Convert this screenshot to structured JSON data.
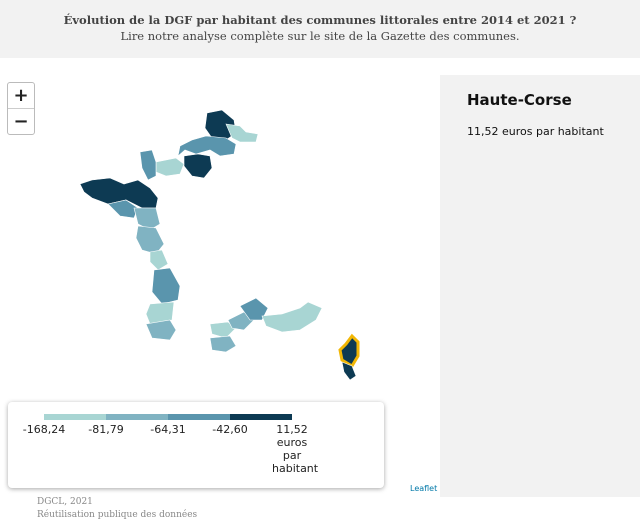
{
  "header": {
    "title": "Évolution de la DGF par habitant des communes littorales entre 2014 et 2021 ?",
    "subtitle": "Lire notre analyse complète sur le site de la Gazette des communes."
  },
  "zoom": {
    "in": "+",
    "out": "−"
  },
  "info": {
    "title": "Haute-Corse",
    "text": "11,52 euros par habitant"
  },
  "legend": {
    "colors": [
      "#a8d5d3",
      "#80b3c2",
      "#5a95ad",
      "#0d3a53"
    ],
    "labels": [
      "-168,24",
      "-81,79",
      "-64,31",
      "-42,60",
      "11,52 euros par habitant"
    ]
  },
  "attribution": "Leaflet",
  "footer": {
    "source": "DGCL, 2021",
    "license": "Réutilisation publique des données"
  }
}
